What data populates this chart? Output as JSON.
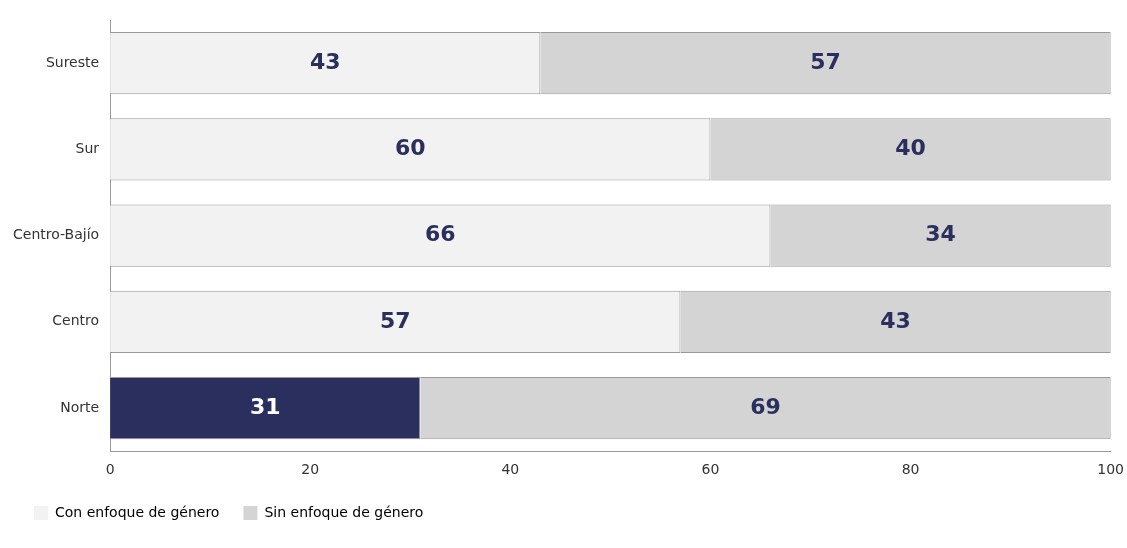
{
  "chart_data": {
    "type": "bar",
    "orientation": "horizontal",
    "stacked": true,
    "categories": [
      "Sureste",
      "Sur",
      "Centro-Bajío",
      "Centro",
      "Norte"
    ],
    "series": [
      {
        "name": "Con enfoque de género",
        "color": "#f2f2f2",
        "colors": [
          "#f2f2f2",
          "#f2f2f2",
          "#f2f2f2",
          "#f2f2f2",
          "#2b2f5e"
        ],
        "values": [
          43,
          60,
          66,
          57,
          31
        ]
      },
      {
        "name": "Sin enfoque de género",
        "color": "#d4d4d4",
        "values": [
          57,
          40,
          34,
          43,
          69
        ]
      }
    ],
    "xlim": [
      0,
      100
    ],
    "xticks": [
      0,
      20,
      40,
      60,
      80,
      100
    ],
    "grid": false,
    "data_labels": true,
    "legend": "bottom left"
  }
}
